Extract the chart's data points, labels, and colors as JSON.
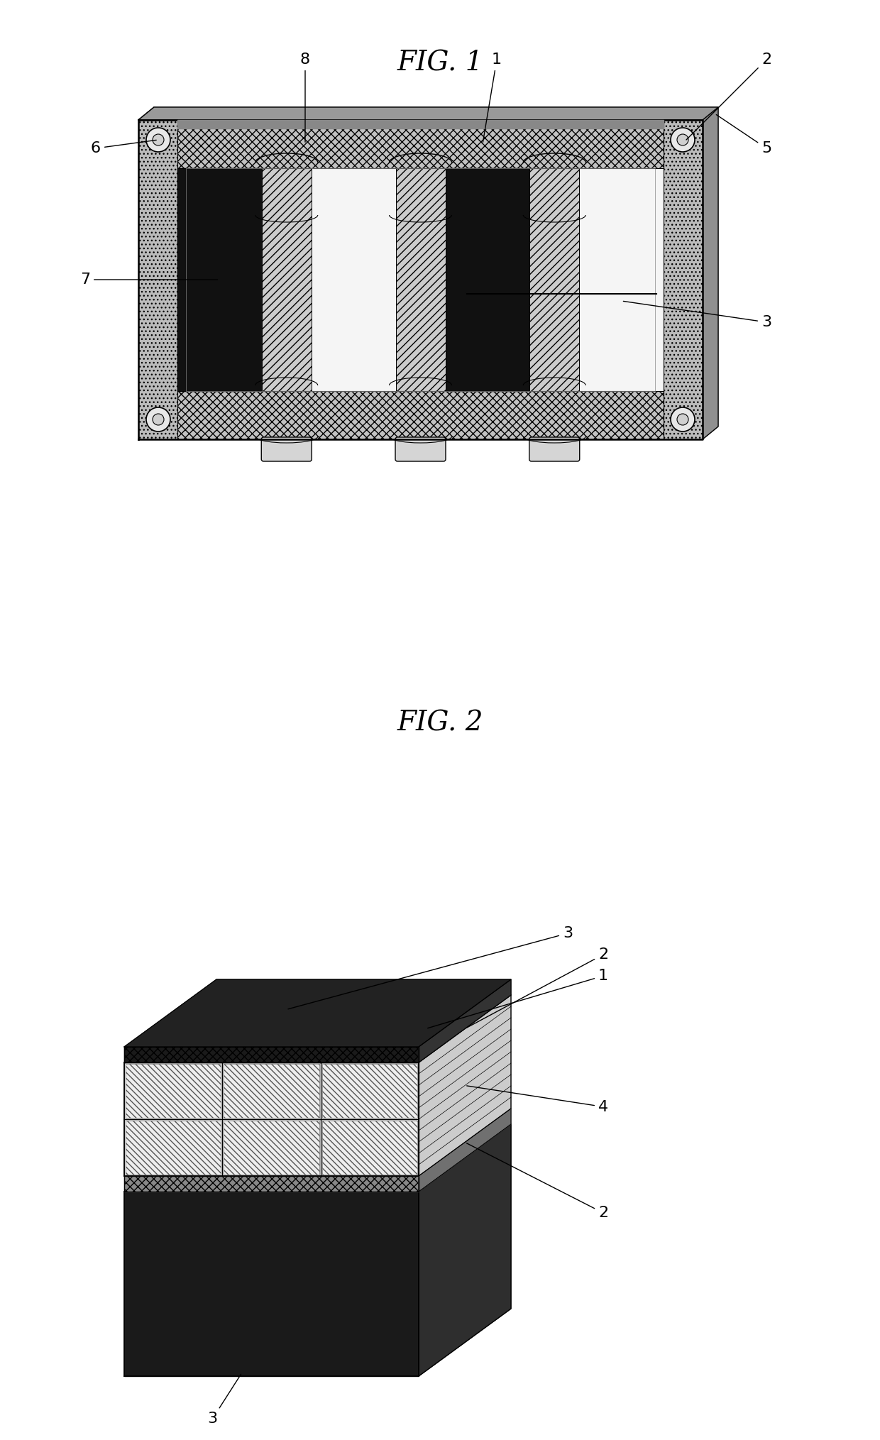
{
  "background_color": "#ffffff",
  "fig1_title": "FIG. 1",
  "fig2_title": "FIG. 2",
  "label_fontsize": 16,
  "title_fontsize": 28
}
